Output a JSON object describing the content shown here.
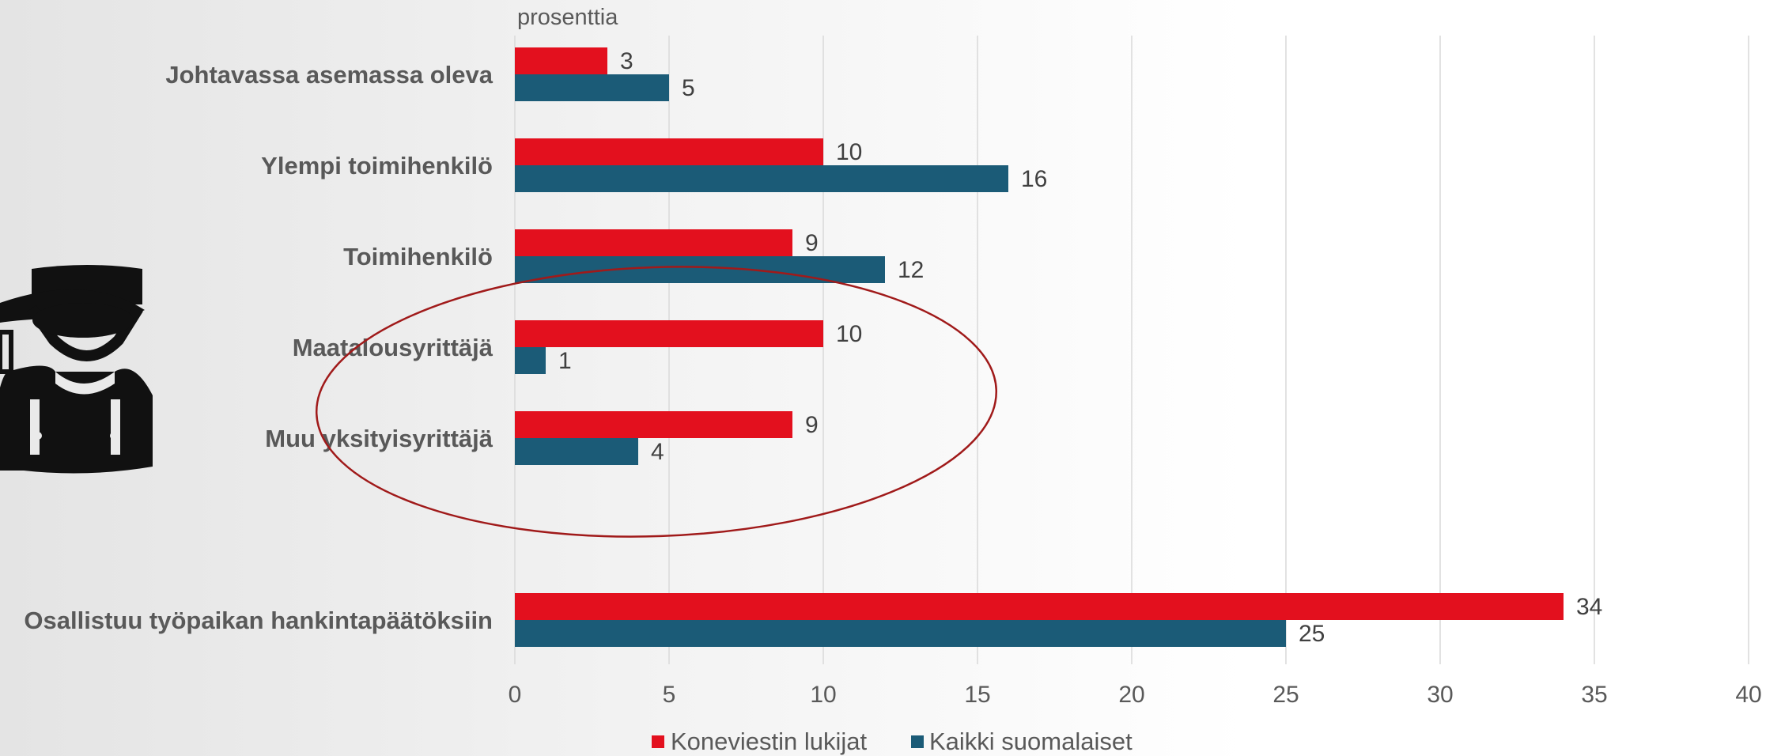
{
  "chart_data": {
    "type": "bar",
    "orientation": "horizontal",
    "unit_label": "prosenttia",
    "categories": [
      "Johtavassa asemassa oleva",
      "Ylempi toimihenkilö",
      "Toimihenkilö",
      "Maatalousyrittäjä",
      "Muu yksityisyrittäjä",
      "",
      "Osallistuu työpaikan hankintapäätöksiin"
    ],
    "series": [
      {
        "name": "Koneviestin lukijat",
        "color": "#e3101e",
        "values": [
          3,
          10,
          9,
          10,
          9,
          null,
          34
        ]
      },
      {
        "name": "Kaikki suomalaiset",
        "color": "#1b5b77",
        "values": [
          5,
          16,
          12,
          1,
          4,
          null,
          25
        ]
      }
    ],
    "xlim": [
      0,
      40
    ],
    "x_ticks": [
      0,
      5,
      10,
      15,
      20,
      25,
      30,
      35,
      40
    ],
    "grid": "vertical",
    "legend_position": "bottom",
    "highlight": "ellipse around Maatalousyrittäjä and Muu yksityisyrittäjä"
  },
  "decoration": {
    "icon": "farmer-icon"
  }
}
